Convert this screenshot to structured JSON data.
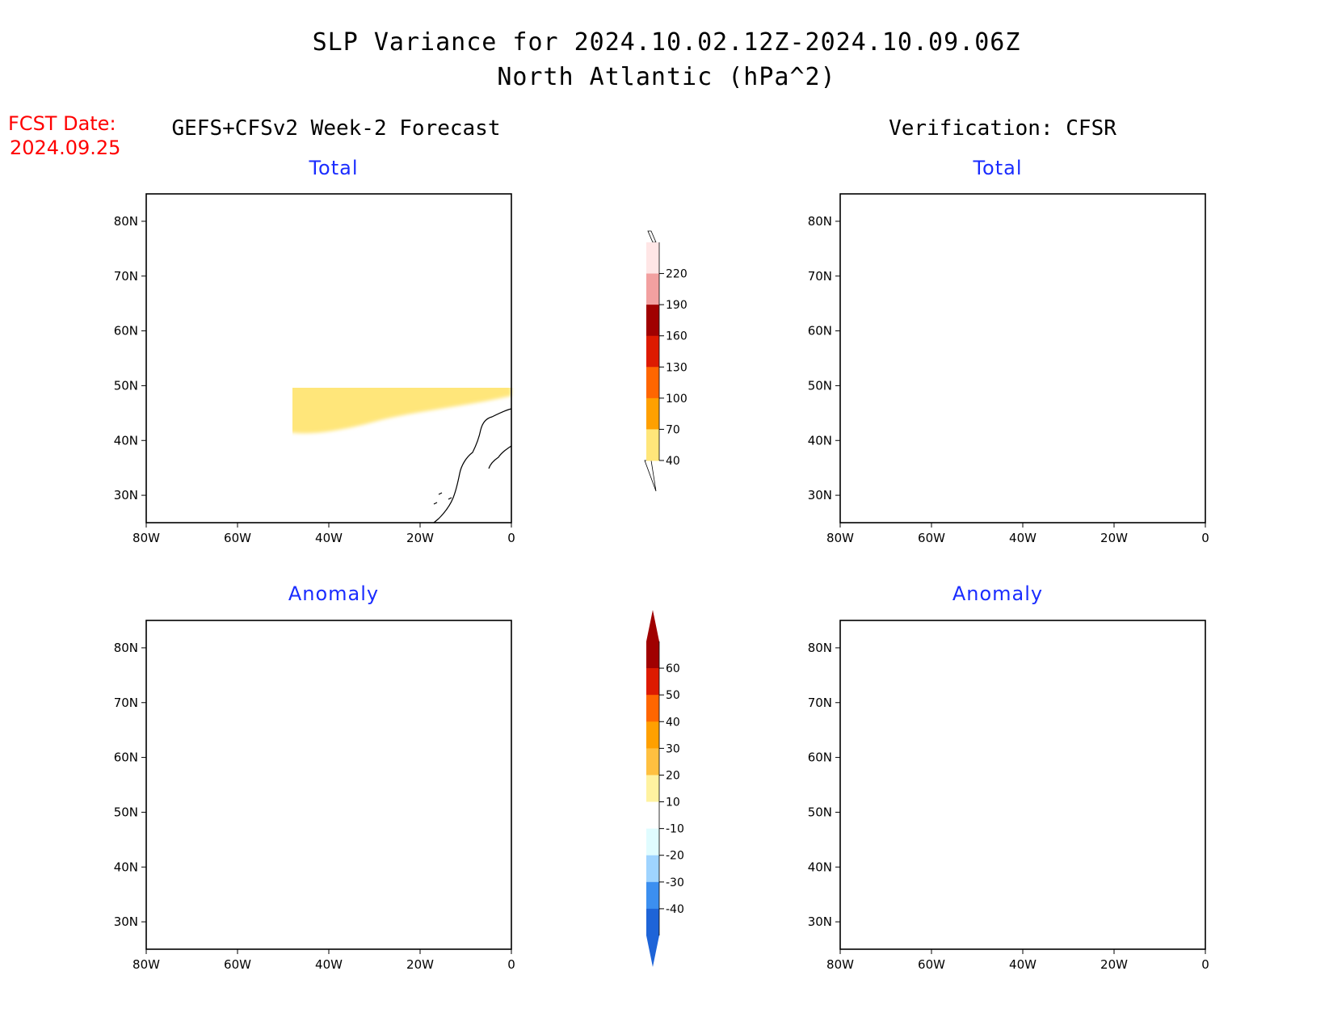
{
  "title_line1": "SLP Variance for 2024.10.02.12Z-2024.10.09.06Z",
  "title_line2": "North Atlantic (hPa^2)",
  "fcst_date_label": "FCST Date:",
  "fcst_date_value": "2024.09.25",
  "left_column_title": "GEFS+CFSv2 Week-2 Forecast",
  "right_column_title": "Verification: CFSR",
  "panels": [
    {
      "id": "forecast-total",
      "title": "Total"
    },
    {
      "id": "verification-total",
      "title": "Total"
    },
    {
      "id": "forecast-anomaly",
      "title": "Anomaly"
    },
    {
      "id": "verification-anomaly",
      "title": "Anomaly"
    }
  ],
  "axes": {
    "lat_labels": [
      "80N",
      "70N",
      "60N",
      "50N",
      "40N",
      "30N"
    ],
    "lon_labels": [
      "80W",
      "60W",
      "40W",
      "20W",
      "0"
    ],
    "lat_values": [
      80,
      70,
      60,
      50,
      40,
      30
    ],
    "lon_values": [
      -80,
      -60,
      -40,
      -20,
      0
    ],
    "lat_range": [
      25,
      85
    ],
    "lon_range": [
      -80,
      0
    ]
  },
  "colorbars": {
    "total": {
      "labels": [
        "220",
        "190",
        "160",
        "130",
        "100",
        "70",
        "40"
      ],
      "colors": [
        "#ffe6e6",
        "#f2a0a0",
        "#a00000",
        "#dd1a00",
        "#ff6600",
        "#ffa000",
        "#ffe67a"
      ]
    },
    "anomaly": {
      "labels": [
        "60",
        "50",
        "40",
        "30",
        "20",
        "10",
        "-10",
        "-20",
        "-30",
        "-40"
      ],
      "colors": [
        "#a00000",
        "#dd1a00",
        "#ff6600",
        "#ffa000",
        "#ffc040",
        "#fff2a0",
        "#ffffff",
        "#e0fcff",
        "#9fd4ff",
        "#3c8ff0",
        "#1e64d8"
      ]
    }
  }
}
